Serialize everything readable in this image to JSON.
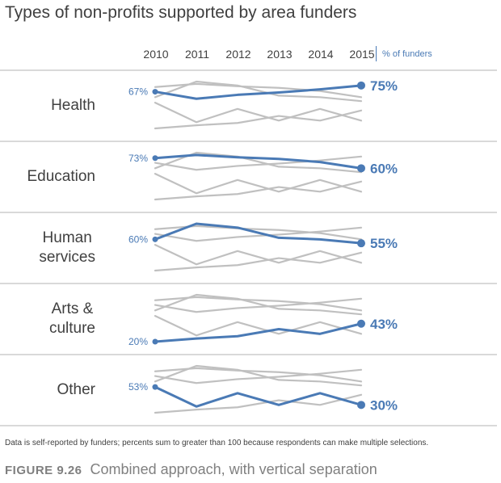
{
  "title": "Types of non-profits supported by area funders",
  "unit_label": "% of funders",
  "footnote": "Data is self-reported by funders; percents sum to greater than 100 because respondents can make multiple selections.",
  "figure_number": "FIGURE 9.26",
  "figure_caption": "Combined approach, with vertical separation",
  "colors": {
    "highlight": "#4a7ab5",
    "context": "#c0c0c0",
    "text": "#404040",
    "divider": "#d9d9d9"
  },
  "chart_data": {
    "type": "line",
    "title": "Types of non-profits supported by area funders",
    "x": [
      "2010",
      "2011",
      "2012",
      "2013",
      "2014",
      "2015"
    ],
    "ylabel": "% of funders",
    "ylim": [
      0,
      100
    ],
    "grid": false,
    "layout": "small multiples, one panel per category; highlighted series in blue, other categories in gray",
    "series": [
      {
        "name": "Health",
        "values": [
          67,
          58,
          63,
          66,
          70,
          75
        ],
        "start_label": "67%",
        "end_label": "75%"
      },
      {
        "name": "Education",
        "values": [
          73,
          77,
          74,
          72,
          68,
          60
        ],
        "start_label": "73%",
        "end_label": "60%"
      },
      {
        "name": "Human services",
        "values": [
          60,
          80,
          75,
          62,
          60,
          55
        ],
        "start_label": "60%",
        "end_label": "55%"
      },
      {
        "name": "Arts & culture",
        "values": [
          20,
          24,
          27,
          36,
          30,
          43
        ],
        "start_label": "20%",
        "end_label": "43%"
      },
      {
        "name": "Other",
        "values": [
          53,
          28,
          45,
          30,
          45,
          30
        ],
        "start_label": "53%",
        "end_label": "30%"
      }
    ]
  }
}
